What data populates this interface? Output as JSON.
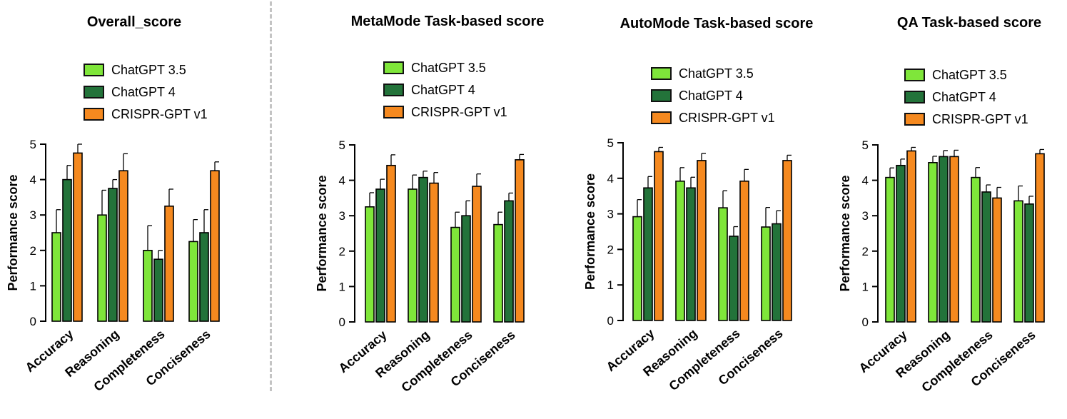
{
  "series_styles": [
    {
      "name": "ChatGPT 3.5",
      "color": "#7fe63a"
    },
    {
      "name": "ChatGPT 4",
      "color": "#23733a"
    },
    {
      "name": "CRISPR-GPT v1",
      "color": "#f5891f"
    }
  ],
  "chart_data": [
    {
      "type": "bar",
      "title": "Overall_score",
      "ylabel": "Performance score",
      "xlabel": "",
      "ylim": [
        0,
        5
      ],
      "yticks": [
        "0",
        "1",
        "2",
        "3",
        "4",
        "5"
      ],
      "categories": [
        "Accuracy",
        "Reasoning",
        "Completeness",
        "Conciseness"
      ],
      "legend_position": "top",
      "series": [
        {
          "name": "ChatGPT 3.5",
          "values": [
            2.5,
            3.0,
            2.0,
            2.25
          ],
          "errors": [
            0.65,
            0.7,
            0.7,
            0.62
          ]
        },
        {
          "name": "ChatGPT 4",
          "values": [
            4.0,
            3.75,
            1.75,
            2.5
          ],
          "errors": [
            0.4,
            0.25,
            0.25,
            0.65
          ]
        },
        {
          "name": "CRISPR-GPT v1",
          "values": [
            4.75,
            4.25,
            3.25,
            4.25
          ],
          "errors": [
            0.25,
            0.48,
            0.48,
            0.25
          ]
        }
      ]
    },
    {
      "type": "bar",
      "title": "MetaMode Task-based score",
      "ylabel": "Performance score",
      "xlabel": "",
      "ylim": [
        0,
        5
      ],
      "yticks": [
        "0",
        "1",
        "2",
        "3",
        "4",
        "5"
      ],
      "categories": [
        "Accuracy",
        "Reasoning",
        "Completeness",
        "Conciseness"
      ],
      "legend_position": "top",
      "series": [
        {
          "name": "ChatGPT 3.5",
          "values": [
            3.25,
            3.75,
            2.67,
            2.75
          ],
          "errors": [
            0.4,
            0.4,
            0.43,
            0.35
          ]
        },
        {
          "name": "ChatGPT 4",
          "values": [
            3.75,
            4.08,
            3.0,
            3.42
          ],
          "errors": [
            0.28,
            0.18,
            0.42,
            0.22
          ]
        },
        {
          "name": "CRISPR-GPT v1",
          "values": [
            4.42,
            3.92,
            3.83,
            4.58
          ],
          "errors": [
            0.3,
            0.3,
            0.35,
            0.15
          ]
        }
      ]
    },
    {
      "type": "bar",
      "title": "AutoMode Task-based score",
      "ylabel": "Performance score",
      "xlabel": "",
      "ylim": [
        0,
        5
      ],
      "yticks": [
        "0",
        "1",
        "2",
        "3",
        "4",
        "5"
      ],
      "categories": [
        "Accuracy",
        "Reasoning",
        "Completeness",
        "Conciseness"
      ],
      "legend_position": "top",
      "series": [
        {
          "name": "ChatGPT 3.5",
          "values": [
            2.92,
            3.92,
            3.17,
            2.63
          ],
          "errors": [
            0.48,
            0.38,
            0.48,
            0.55
          ]
        },
        {
          "name": "ChatGPT 4",
          "values": [
            3.73,
            3.73,
            2.37,
            2.72
          ],
          "errors": [
            0.32,
            0.3,
            0.27,
            0.37
          ]
        },
        {
          "name": "CRISPR-GPT v1",
          "values": [
            4.75,
            4.5,
            3.92,
            4.5
          ],
          "errors": [
            0.12,
            0.2,
            0.33,
            0.15
          ]
        }
      ]
    },
    {
      "type": "bar",
      "title": "QA Task-based score",
      "ylabel": "Performance score",
      "xlabel": "",
      "ylim": [
        0,
        5
      ],
      "yticks": [
        "0",
        "1",
        "2",
        "3",
        "4",
        "5"
      ],
      "categories": [
        "Accuracy",
        "Reasoning",
        "Completeness",
        "Conciseness"
      ],
      "legend_position": "top",
      "series": [
        {
          "name": "ChatGPT 3.5",
          "values": [
            4.08,
            4.5,
            4.08,
            3.42
          ],
          "errors": [
            0.27,
            0.18,
            0.28,
            0.42
          ]
        },
        {
          "name": "ChatGPT 4",
          "values": [
            4.42,
            4.67,
            3.67,
            3.33
          ],
          "errors": [
            0.18,
            0.17,
            0.2,
            0.22
          ]
        },
        {
          "name": "CRISPR-GPT v1",
          "values": [
            4.83,
            4.67,
            3.5,
            4.75
          ],
          "errors": [
            0.1,
            0.18,
            0.3,
            0.12
          ]
        }
      ]
    }
  ]
}
